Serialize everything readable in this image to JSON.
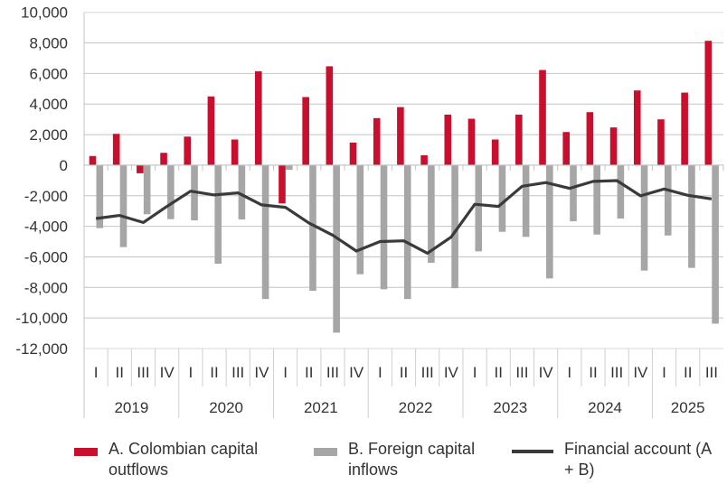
{
  "chart_data": {
    "type": "bar",
    "title": "",
    "xlabel": "",
    "ylabel": "",
    "ylim": [
      -12000,
      10000
    ],
    "yticks": [
      10000,
      8000,
      6000,
      4000,
      2000,
      0,
      -2000,
      -4000,
      -6000,
      -8000,
      -10000,
      -12000
    ],
    "ytick_labels": [
      "10,000",
      "8,000",
      "6,000",
      "4,000",
      "2,000",
      "0",
      "-2,000",
      "-4,000",
      "-6,000",
      "-8,000",
      "-10,000",
      "-12,000"
    ],
    "grid": true,
    "legend_position": "bottom",
    "years": [
      {
        "label": "2019",
        "quarters": [
          "I",
          "II",
          "III",
          "IV"
        ]
      },
      {
        "label": "2020",
        "quarters": [
          "I",
          "II",
          "III",
          "IV"
        ]
      },
      {
        "label": "2021",
        "quarters": [
          "I",
          "II",
          "III",
          "IV"
        ]
      },
      {
        "label": "2022",
        "quarters": [
          "I",
          "II",
          "III",
          "IV"
        ]
      },
      {
        "label": "2023",
        "quarters": [
          "I",
          "II",
          "III",
          "IV"
        ]
      },
      {
        "label": "2024",
        "quarters": [
          "I",
          "II",
          "III",
          "IV"
        ]
      },
      {
        "label": "2025",
        "quarters": [
          "I",
          "II",
          "III"
        ]
      }
    ],
    "series": [
      {
        "name": "A. Colombian capital outflows",
        "type": "bar",
        "color": "#C8102E",
        "values": [
          600,
          2050,
          -530,
          810,
          1870,
          4500,
          1680,
          6150,
          -2500,
          4460,
          6470,
          1480,
          3080,
          3800,
          650,
          3310,
          3040,
          1680,
          3310,
          6230,
          2170,
          3470,
          2470,
          4890,
          3000,
          4750,
          8140
        ]
      },
      {
        "name": "B. Foreign capital inflows",
        "type": "bar",
        "color": "#A6A6A6",
        "values": [
          -4120,
          -5360,
          -3210,
          -3530,
          -3610,
          -6450,
          -3550,
          -8760,
          -300,
          -8220,
          -10960,
          -7140,
          -8120,
          -8760,
          -6390,
          -8050,
          -5640,
          -4360,
          -4690,
          -7410,
          -3670,
          -4540,
          -3490,
          -6900,
          -4600,
          -6720,
          -10370
        ]
      },
      {
        "name": "Financial account (A + B)",
        "type": "line",
        "color": "#3A3A3A",
        "values": [
          -3490,
          -3290,
          -3750,
          -2700,
          -1700,
          -1950,
          -1810,
          -2600,
          -2760,
          -3790,
          -4580,
          -5620,
          -5000,
          -4950,
          -5760,
          -4710,
          -2560,
          -2700,
          -1380,
          -1140,
          -1520,
          -1060,
          -1010,
          -2010,
          -1560,
          -1970,
          -2210
        ]
      }
    ]
  }
}
